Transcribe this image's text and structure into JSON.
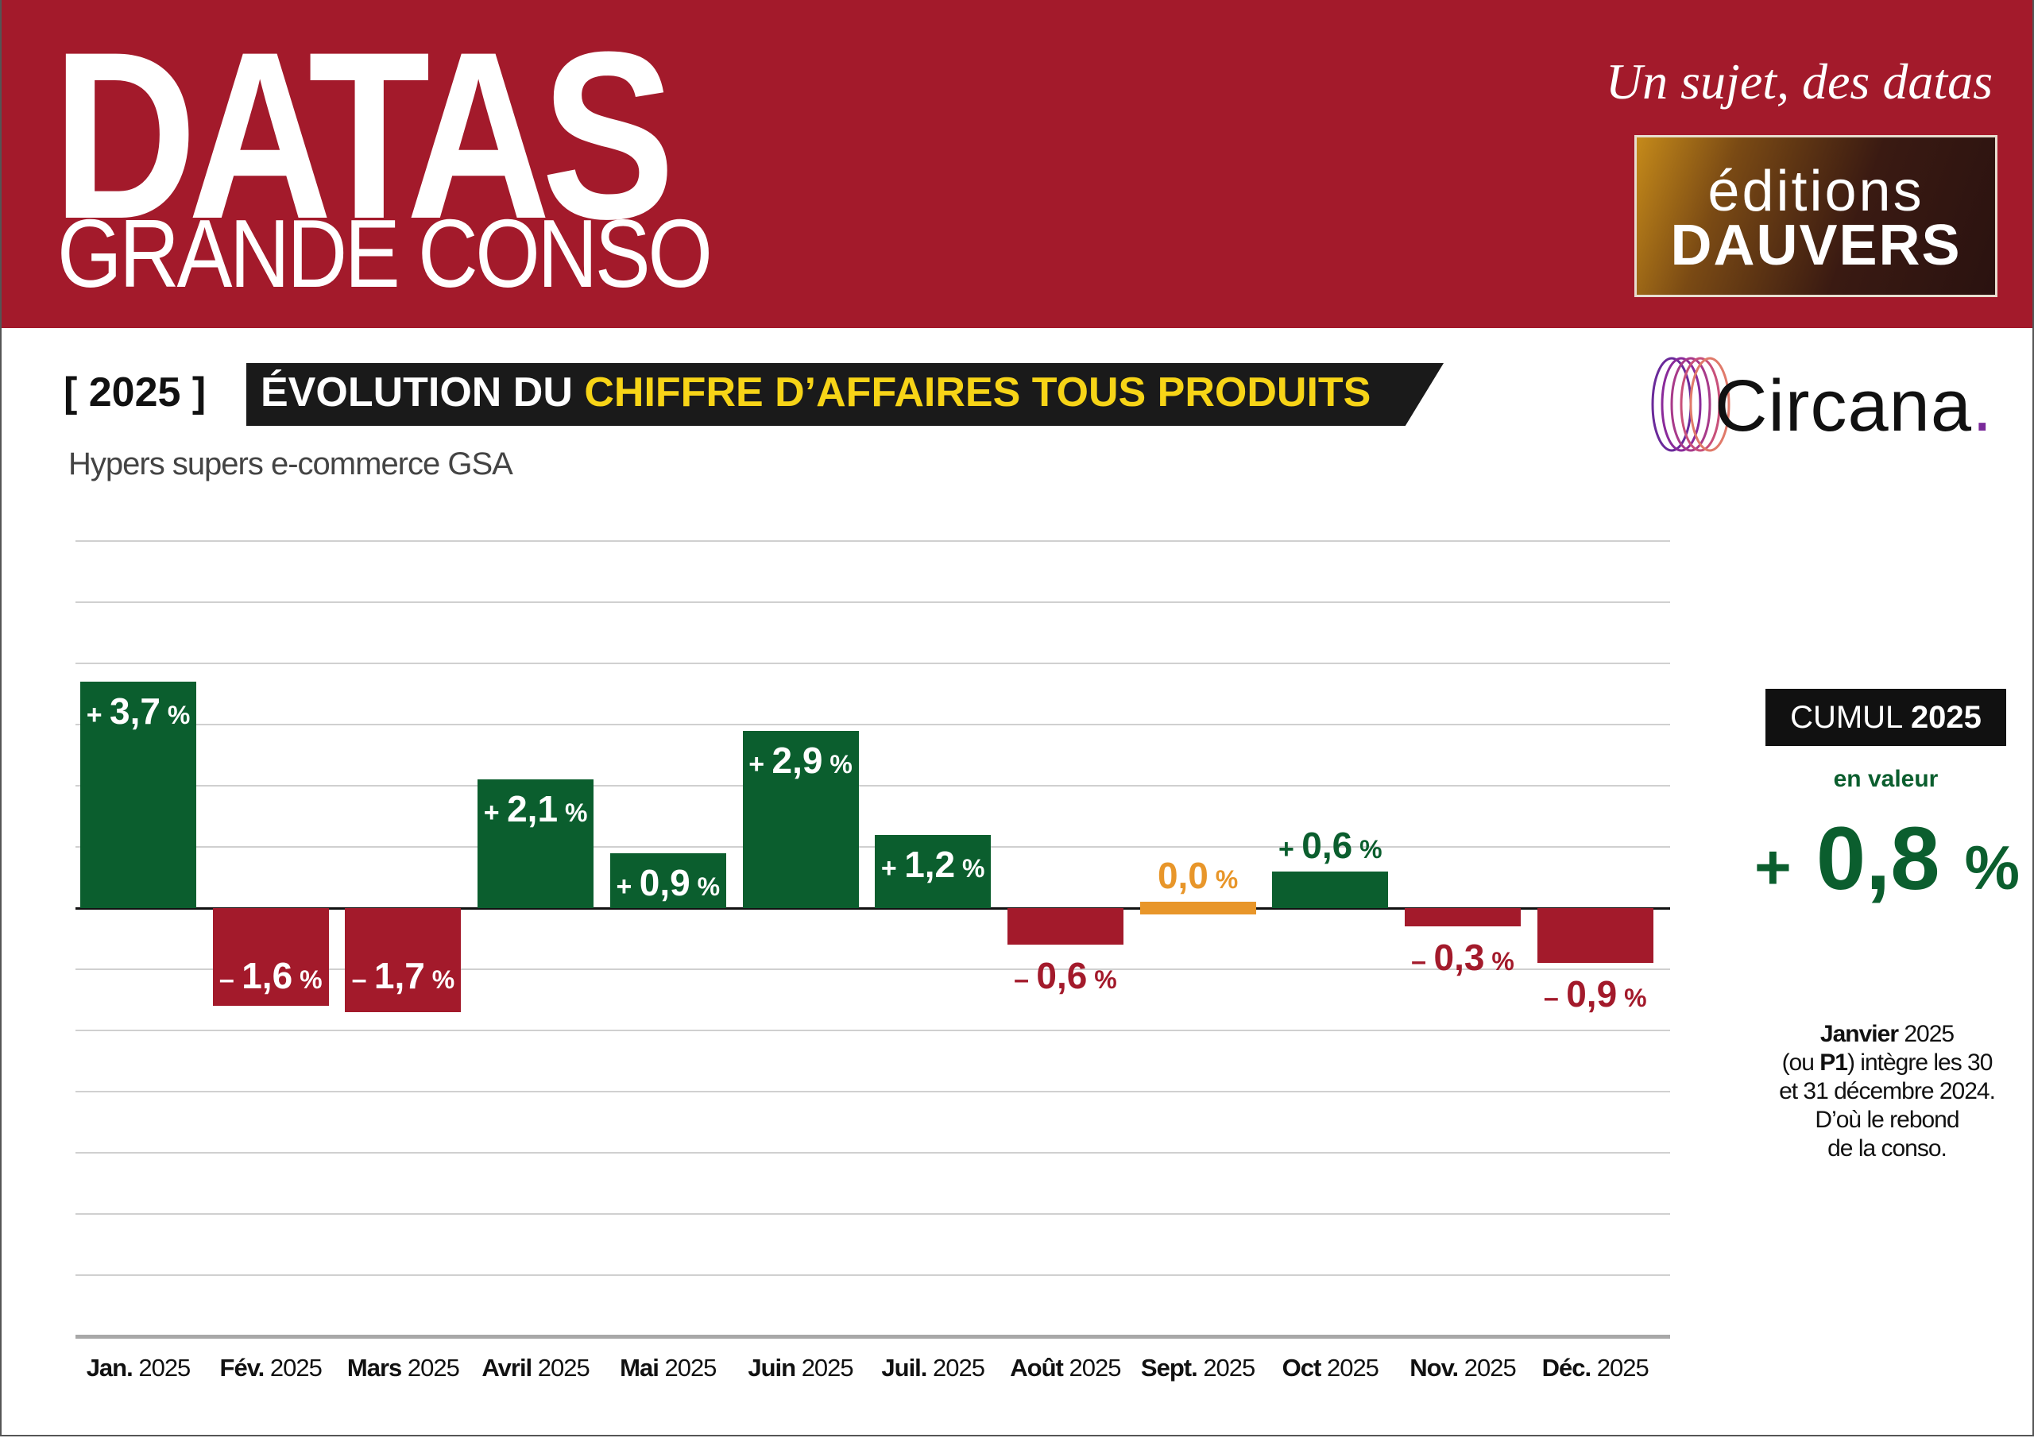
{
  "header": {
    "brand_main": "DATAS",
    "brand_sub": "GRANDE CONSO",
    "tagline": "Un sujet, des datas",
    "publisher_logo": {
      "line1": "éditions",
      "line2": "DAUVERS"
    }
  },
  "title": {
    "year_tag": "[ 2025 ]",
    "part1": "ÉVOLUTION DU",
    "part2": "CHIFFRE D’AFFAIRES TOUS PRODUITS",
    "subtitle": "Hypers supers e-commerce GSA"
  },
  "source_logo": {
    "text": "Circana",
    "dot": "."
  },
  "colors": {
    "header_red": "#A31A2B",
    "positive": "#0B5E2E",
    "negative": "#A31A2B",
    "neutral": "#E8962A",
    "highlight_yellow": "#F7D417"
  },
  "chart_data": {
    "type": "bar",
    "categories": [
      {
        "month": "Jan.",
        "year": "2025"
      },
      {
        "month": "Fév.",
        "year": "2025"
      },
      {
        "month": "Mars",
        "year": "2025"
      },
      {
        "month": "Avril",
        "year": "2025"
      },
      {
        "month": "Mai",
        "year": "2025"
      },
      {
        "month": "Juin",
        "year": "2025"
      },
      {
        "month": "Juil.",
        "year": "2025"
      },
      {
        "month": "Août",
        "year": "2025"
      },
      {
        "month": "Sept.",
        "year": "2025"
      },
      {
        "month": "Oct",
        "year": "2025"
      },
      {
        "month": "Nov.",
        "year": "2025"
      },
      {
        "month": "Déc.",
        "year": "2025"
      }
    ],
    "values": [
      3.7,
      -1.6,
      -1.7,
      2.1,
      0.9,
      2.9,
      1.2,
      -0.6,
      0.0,
      0.6,
      -0.3,
      -0.9
    ],
    "unit": "%",
    "ylim": [
      -7,
      6
    ],
    "grid": true
  },
  "cumul": {
    "label": "CUMUL",
    "year": "2025",
    "sublabel": "en valeur",
    "sign": "+",
    "value": "0,8",
    "unit": "%"
  },
  "note": {
    "l1_bold": "Janvier",
    "l1_rest": " 2025",
    "l2_a": "(ou ",
    "l2_bold": "P1",
    "l2_b": ") intègre les 30",
    "l3": "et 31 décembre 2024.",
    "l4": "D’où le rebond",
    "l5": "de la conso."
  }
}
